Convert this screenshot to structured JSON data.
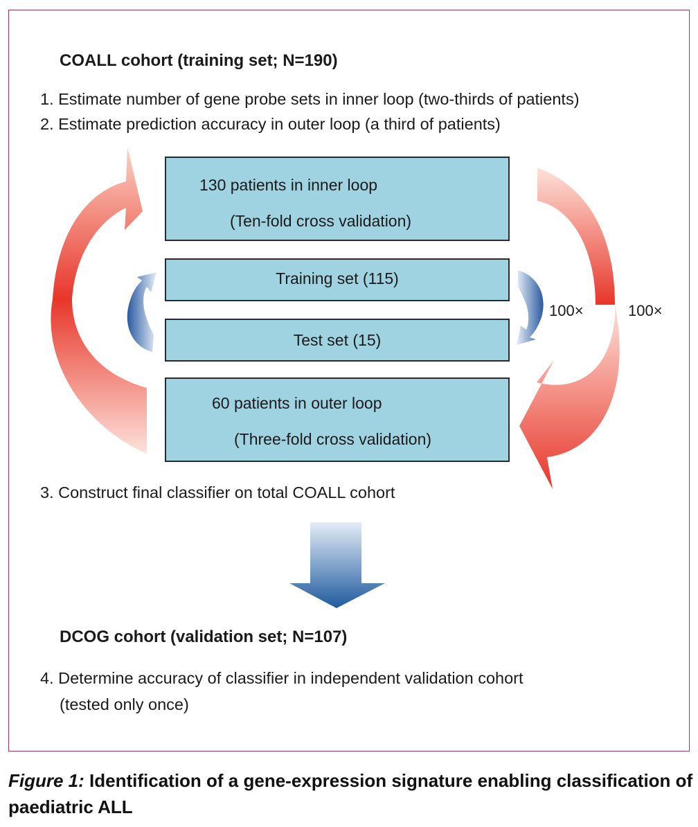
{
  "training": {
    "heading": "COALL cohort (training set; N=190)",
    "step1": "1. Estimate number of gene probe sets in inner loop (two-thirds of patients)",
    "step2": "2. Estimate prediction accuracy in outer loop (a third of patients)",
    "step3": "3. Construct final classifier on total COALL cohort"
  },
  "boxes": {
    "inner": {
      "line1": "130 patients in inner loop",
      "line2": "(Ten-fold cross validation)"
    },
    "train": {
      "label": "Training set (115)"
    },
    "test": {
      "label": "Test set (15)"
    },
    "outer": {
      "line1": "60 patients in outer loop",
      "line2": "(Three-fold cross validation)"
    }
  },
  "repeats": {
    "inner": "100×",
    "outer": "100×"
  },
  "validation": {
    "heading": "DCOG cohort (validation set; N=107)",
    "step4_line1": "4. Determine accuracy of classifier in independent validation cohort",
    "step4_line2": "(tested only once)"
  },
  "caption": {
    "label": "Figure 1:",
    "text": "Identification of a gene-expression signature enabling classification of paediatric ALL"
  },
  "colors": {
    "border": "#b0325a",
    "box_fill": "#a0d3e2",
    "red_arrow": "#e8362a",
    "blue_arrow": "#2a5aa0"
  }
}
